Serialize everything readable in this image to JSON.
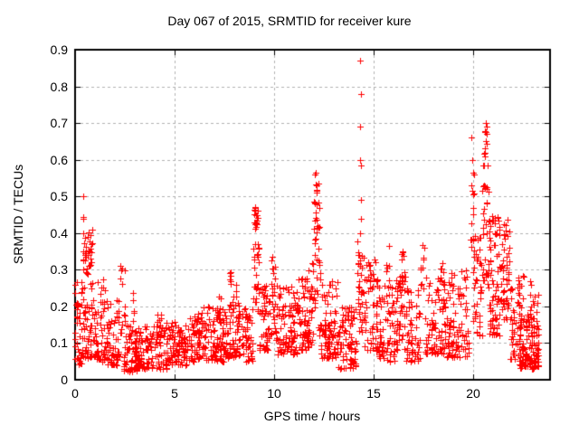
{
  "chart_data": {
    "type": "scatter",
    "title": "Day 067 of 2015, SRMTID for receiver kure",
    "xlabel": "GPS time / hours",
    "ylabel": "SRMTID / TECUs",
    "xlim": [
      0,
      23.87
    ],
    "ylim": [
      0,
      0.9
    ],
    "xticks": [
      0,
      5,
      10,
      15,
      20
    ],
    "xtick_labels": [
      "0",
      "5",
      "10",
      "15",
      "20"
    ],
    "yticks": [
      0,
      0.1,
      0.2,
      0.3,
      0.4,
      0.5,
      0.6,
      0.7,
      0.8,
      0.9
    ],
    "ytick_labels": [
      "0",
      "0.1",
      "0.2",
      "0.3",
      "0.4",
      "0.5",
      "0.6",
      "0.7",
      "0.8",
      "0.9"
    ],
    "grid": true,
    "grid_style": "dashed",
    "legend": "none",
    "marker": {
      "shape": "plus",
      "size": 7,
      "color": "#ff0000"
    },
    "colors": {
      "marker": "#ff0000",
      "grid": "#b0b0b0",
      "border": "#000000",
      "background": "#ffffff",
      "text": "#000000"
    },
    "series": [
      {
        "name": "SRMTID",
        "color": "#ff0000",
        "seed": 20150067,
        "notable_points": [
          [
            0.42,
            0.5
          ],
          [
            9.05,
            0.47
          ],
          [
            12.1,
            0.565
          ],
          [
            14.33,
            0.87
          ],
          [
            14.36,
            0.78
          ],
          [
            14.34,
            0.69
          ],
          [
            14.32,
            0.6
          ],
          [
            14.38,
            0.585
          ],
          [
            14.35,
            0.49
          ],
          [
            14.36,
            0.44
          ],
          [
            14.33,
            0.4
          ],
          [
            19.93,
            0.66
          ],
          [
            19.95,
            0.6
          ],
          [
            19.9,
            0.53
          ],
          [
            20.62,
            0.7
          ],
          [
            20.58,
            0.675
          ],
          [
            20.65,
            0.65
          ],
          [
            20.6,
            0.62
          ],
          [
            20.55,
            0.585
          ]
        ],
        "density_bins_format": [
          "x_start",
          "x_end",
          "count",
          "y_min",
          "y_max",
          "low_bias_exponent"
        ],
        "density_bins": [
          [
            0.0,
            0.35,
            35,
            0.04,
            0.3,
            1.8
          ],
          [
            0.3,
            0.95,
            80,
            0.06,
            0.42,
            1.5
          ],
          [
            0.35,
            0.8,
            16,
            0.3,
            0.47,
            1.0
          ],
          [
            0.95,
            1.6,
            55,
            0.05,
            0.28,
            1.9
          ],
          [
            1.6,
            2.25,
            60,
            0.04,
            0.22,
            1.8
          ],
          [
            2.25,
            2.5,
            14,
            0.1,
            0.33,
            1.1
          ],
          [
            2.45,
            3.1,
            55,
            0.02,
            0.15,
            1.5
          ],
          [
            2.85,
            3.0,
            6,
            0.12,
            0.24,
            1.0
          ],
          [
            3.0,
            4.6,
            130,
            0.03,
            0.15,
            1.5
          ],
          [
            4.1,
            4.35,
            8,
            0.11,
            0.19,
            1.0
          ],
          [
            4.6,
            5.6,
            85,
            0.04,
            0.16,
            1.5
          ],
          [
            5.6,
            6.6,
            80,
            0.05,
            0.18,
            1.5
          ],
          [
            6.3,
            6.45,
            7,
            0.13,
            0.21,
            1.0
          ],
          [
            6.6,
            7.6,
            80,
            0.05,
            0.2,
            1.6
          ],
          [
            7.2,
            7.4,
            8,
            0.14,
            0.23,
            1.0
          ],
          [
            7.6,
            8.25,
            50,
            0.06,
            0.22,
            1.5
          ],
          [
            7.7,
            7.85,
            8,
            0.17,
            0.3,
            1.0
          ],
          [
            7.95,
            8.1,
            7,
            0.17,
            0.28,
            1.0
          ],
          [
            8.2,
            8.95,
            55,
            0.05,
            0.2,
            1.5
          ],
          [
            8.95,
            9.25,
            25,
            0.14,
            0.4,
            1.0
          ],
          [
            8.98,
            9.22,
            20,
            0.41,
            0.47,
            1.0
          ],
          [
            9.25,
            9.75,
            45,
            0.08,
            0.26,
            1.5
          ],
          [
            9.75,
            10.1,
            28,
            0.12,
            0.35,
            1.2
          ],
          [
            10.1,
            11.2,
            100,
            0.07,
            0.26,
            1.6
          ],
          [
            11.2,
            11.9,
            70,
            0.08,
            0.3,
            1.5
          ],
          [
            11.9,
            12.35,
            32,
            0.12,
            0.4,
            1.2
          ],
          [
            12.0,
            12.3,
            24,
            0.4,
            0.565,
            1.0
          ],
          [
            12.35,
            13.2,
            85,
            0.06,
            0.27,
            1.6
          ],
          [
            13.2,
            14.15,
            85,
            0.03,
            0.2,
            1.6
          ],
          [
            14.2,
            14.55,
            38,
            0.13,
            0.38,
            1.1
          ],
          [
            14.55,
            15.25,
            60,
            0.08,
            0.33,
            1.4
          ],
          [
            15.25,
            16.1,
            70,
            0.05,
            0.26,
            1.5
          ],
          [
            15.65,
            15.8,
            7,
            0.25,
            0.37,
            1.0
          ],
          [
            16.1,
            16.65,
            50,
            0.08,
            0.3,
            1.4
          ],
          [
            16.35,
            16.5,
            5,
            0.28,
            0.36,
            1.0
          ],
          [
            16.65,
            17.35,
            60,
            0.05,
            0.25,
            1.5
          ],
          [
            17.35,
            17.6,
            10,
            0.2,
            0.38,
            1.0
          ],
          [
            17.6,
            18.65,
            85,
            0.07,
            0.28,
            1.5
          ],
          [
            18.3,
            18.5,
            6,
            0.26,
            0.35,
            1.0
          ],
          [
            18.65,
            19.8,
            95,
            0.06,
            0.3,
            1.5
          ],
          [
            19.85,
            20.05,
            12,
            0.25,
            0.6,
            1.0
          ],
          [
            20.0,
            20.45,
            45,
            0.12,
            0.4,
            1.3
          ],
          [
            20.45,
            20.8,
            30,
            0.25,
            0.55,
            1.1
          ],
          [
            20.5,
            20.72,
            10,
            0.55,
            0.7,
            1.0
          ],
          [
            20.8,
            21.35,
            75,
            0.12,
            0.45,
            1.4
          ],
          [
            21.35,
            21.85,
            50,
            0.15,
            0.44,
            1.2
          ],
          [
            21.85,
            22.35,
            40,
            0.05,
            0.28,
            1.5
          ],
          [
            22.3,
            23.3,
            120,
            0.03,
            0.18,
            1.5
          ],
          [
            22.25,
            22.55,
            10,
            0.18,
            0.29,
            1.0
          ],
          [
            22.75,
            22.95,
            8,
            0.15,
            0.27,
            1.0
          ],
          [
            23.0,
            23.28,
            14,
            0.08,
            0.25,
            1.2
          ]
        ]
      }
    ]
  }
}
